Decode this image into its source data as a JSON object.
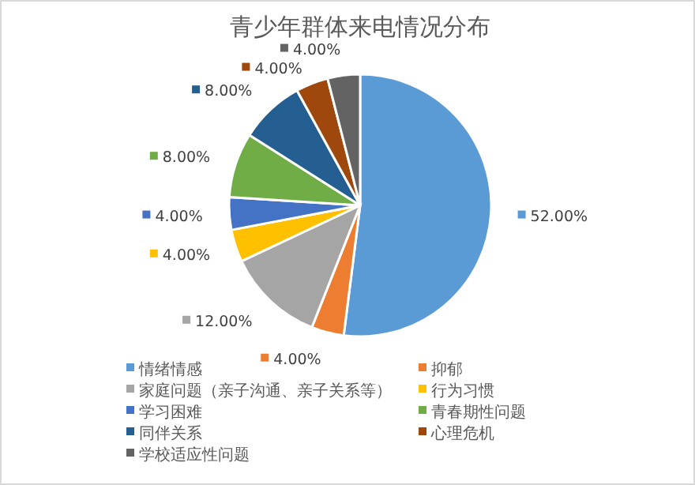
{
  "chart_data": {
    "type": "pie",
    "title": "青少年群体来电情况分布",
    "categories": [
      "情绪情感",
      "抑郁",
      "家庭问题（亲子沟通、亲子关系等）",
      "行为习惯",
      "学习困难",
      "青春期性问题",
      "同伴关系",
      "心理危机",
      "学校适应性问题"
    ],
    "values": [
      52,
      4,
      12,
      4,
      4,
      8,
      8,
      4,
      4
    ],
    "value_labels": [
      "52.00%",
      "4.00%",
      "12.00%",
      "4.00%",
      "4.00%",
      "8.00%",
      "8.00%",
      "4.00%",
      "4.00%"
    ],
    "colors": [
      "#5b9bd5",
      "#ed7d31",
      "#a5a5a5",
      "#ffc000",
      "#4472c4",
      "#70ad47",
      "#255e91",
      "#9e480e",
      "#636363"
    ],
    "legend": "bottom"
  }
}
